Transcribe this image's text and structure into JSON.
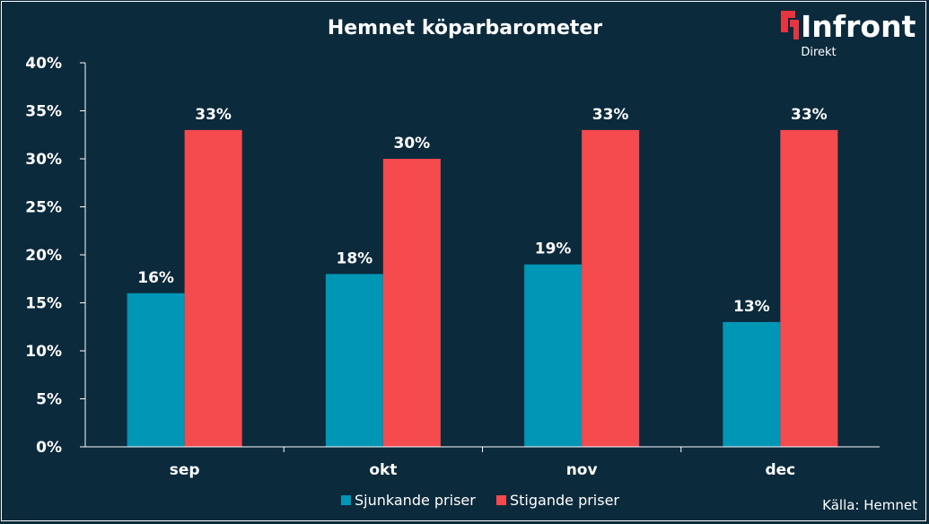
{
  "brand": {
    "name": "Infront",
    "sub": "Direkt",
    "accent": "#e8343f"
  },
  "source": "Källa:  Hemnet",
  "chart_data": {
    "type": "bar",
    "title": "Hemnet köparbarometer",
    "categories": [
      "sep",
      "okt",
      "nov",
      "dec"
    ],
    "series": [
      {
        "name": "Sjunkande priser",
        "color": "#0096b5",
        "values": [
          16,
          18,
          19,
          13
        ],
        "labels": [
          "16%",
          "18%",
          "19%",
          "13%"
        ]
      },
      {
        "name": "Stigande priser",
        "color": "#f54a4e",
        "values": [
          33,
          30,
          33,
          33
        ],
        "labels": [
          "33%",
          "30%",
          "33%",
          "33%"
        ]
      }
    ],
    "ylim": [
      0,
      40
    ],
    "yticks": [
      0,
      5,
      10,
      15,
      20,
      25,
      30,
      35,
      40
    ],
    "ytick_labels": [
      "0%",
      "5%",
      "10%",
      "15%",
      "20%",
      "25%",
      "30%",
      "35%",
      "40%"
    ],
    "grid": false,
    "legend": "bottom"
  }
}
